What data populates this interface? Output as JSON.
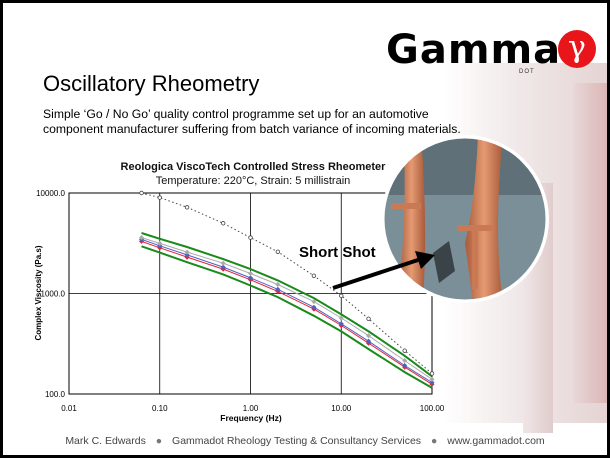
{
  "logo": {
    "text": "Gamma",
    "subtext": "DOT",
    "mark": "γ"
  },
  "slide": {
    "title": "Oscillatory Rheometry",
    "subtitle": "Simple ‘Go / No Go’ quality control programme set up for an automotive component manufacturer suffering from batch variance of incoming materials."
  },
  "callout": {
    "label": "Short Shot"
  },
  "footer": {
    "author": "Mark C. Edwards",
    "company": "Gammadot Rheology Testing & Consultancy Services",
    "website": "www.gammadot.com"
  },
  "chart_data": {
    "type": "line",
    "title": "Reologica ViscoTech Controlled Stress Rheometer",
    "subtitle": "Temperature: 220°C, Strain: 5 millistrain",
    "xlabel": "Frequency (Hz)",
    "ylabel": "Complex Viscosity (Pa.s)",
    "x_scale": "log",
    "y_scale": "log",
    "xlim": [
      0.01,
      100
    ],
    "ylim": [
      100,
      10000
    ],
    "x_ticks": [
      "0.01",
      "0.10",
      "1.00",
      "10.00",
      "100.00"
    ],
    "y_ticks": [
      "100.0",
      "1000.0",
      "10000.0"
    ],
    "grid": true,
    "series": [
      {
        "style": "upper-limit",
        "color": "#1a8a1a",
        "x": [
          0.063,
          0.1,
          0.2,
          0.5,
          1,
          2,
          5,
          10,
          20,
          50,
          100
        ],
        "y": [
          4000,
          3500,
          2900,
          2200,
          1750,
          1350,
          900,
          620,
          420,
          240,
          150
        ]
      },
      {
        "style": "lower-limit",
        "color": "#1a8a1a",
        "x": [
          0.063,
          0.1,
          0.2,
          0.5,
          1,
          2,
          5,
          10,
          20,
          50,
          100
        ],
        "y": [
          2950,
          2550,
          2050,
          1550,
          1200,
          920,
          600,
          420,
          280,
          165,
          115
        ]
      },
      {
        "style": "batch-red",
        "color": "#e0243a",
        "x": [
          0.063,
          0.1,
          0.2,
          0.5,
          1,
          2,
          5,
          10,
          20,
          50,
          100
        ],
        "y": [
          3300,
          2850,
          2300,
          1750,
          1370,
          1050,
          700,
          480,
          320,
          185,
          125
        ]
      },
      {
        "style": "batch-blue",
        "color": "#5060c0",
        "x": [
          0.063,
          0.1,
          0.2,
          0.5,
          1,
          2,
          5,
          10,
          20,
          50,
          100
        ],
        "y": [
          3450,
          2980,
          2420,
          1830,
          1430,
          1100,
          730,
          500,
          335,
          192,
          130
        ]
      },
      {
        "style": "batch-grey",
        "color": "#aaaaaa",
        "x": [
          0.063,
          0.1,
          0.2,
          0.5,
          1,
          2,
          5,
          10,
          20,
          50,
          100
        ],
        "y": [
          3600,
          3150,
          2580,
          2000,
          1580,
          1230,
          830,
          570,
          380,
          215,
          140
        ]
      },
      {
        "style": "short-shot",
        "color": "#444444",
        "x": [
          0.063,
          0.1,
          0.2,
          0.5,
          1,
          2,
          5,
          10,
          20,
          50,
          100
        ],
        "y": [
          10000,
          9000,
          7200,
          5000,
          3600,
          2600,
          1500,
          950,
          560,
          270,
          160
        ]
      }
    ]
  }
}
